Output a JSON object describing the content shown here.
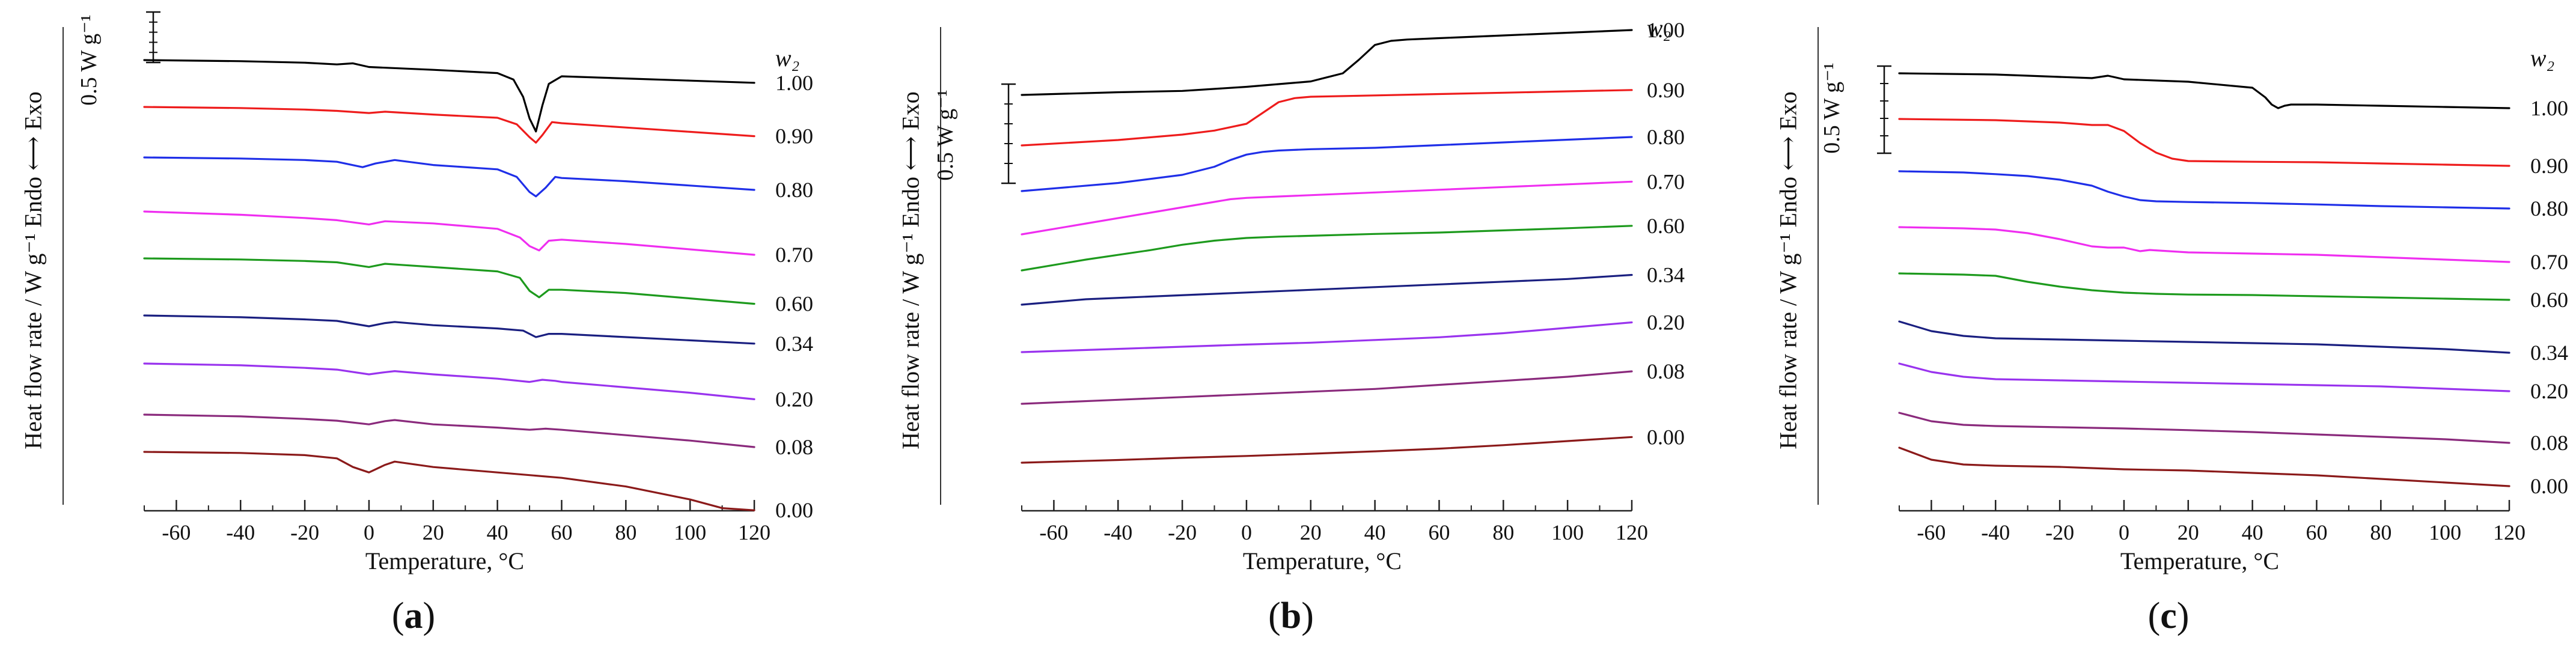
{
  "chart_data": [
    {
      "type": "line",
      "panel_label": "a",
      "xlabel": "Temperature, °C",
      "ylabel": "Heat flow rate / W g⁻¹   Endo ⟷ Exo",
      "scale_bar": "0.5 W g⁻¹",
      "legend_title": "w₂",
      "xlim": [
        -70,
        120
      ],
      "xticks": [
        -60,
        -40,
        -20,
        0,
        20,
        40,
        60,
        80,
        100,
        120
      ],
      "series": [
        {
          "name": "1.00",
          "color": "#000000",
          "x": [
            -70,
            -40,
            -20,
            -10,
            -5,
            0,
            20,
            40,
            45,
            48,
            50,
            52,
            54,
            56,
            60,
            80,
            100,
            120
          ],
          "y": [
            0.5,
            0.45,
            0.38,
            0.3,
            0.35,
            0.18,
            0.05,
            -0.1,
            -0.4,
            -1.2,
            -2.2,
            -2.8,
            -1.6,
            -0.6,
            -0.25,
            -0.35,
            -0.45,
            -0.55
          ]
        },
        {
          "name": "0.90",
          "color": "#ee1c1c",
          "x": [
            -70,
            -40,
            -20,
            -10,
            0,
            5,
            20,
            40,
            46,
            50,
            52,
            54,
            57,
            60,
            80,
            100,
            120
          ],
          "y": [
            0.0,
            -0.05,
            -0.12,
            -0.18,
            -0.28,
            -0.22,
            -0.35,
            -0.5,
            -0.8,
            -1.4,
            -1.65,
            -1.3,
            -0.7,
            -0.75,
            -0.95,
            -1.15,
            -1.35
          ]
        },
        {
          "name": "0.80",
          "color": "#1f2fe8",
          "x": [
            -70,
            -40,
            -20,
            -10,
            -2,
            2,
            8,
            20,
            40,
            46,
            50,
            52,
            55,
            58,
            60,
            80,
            100,
            120
          ],
          "y": [
            0.0,
            -0.05,
            -0.12,
            -0.2,
            -0.45,
            -0.28,
            -0.12,
            -0.35,
            -0.55,
            -0.9,
            -1.6,
            -1.8,
            -1.4,
            -0.9,
            -0.95,
            -1.1,
            -1.3,
            -1.5
          ]
        },
        {
          "name": "0.70",
          "color": "#ef2ef0",
          "x": [
            -70,
            -40,
            -20,
            -10,
            0,
            5,
            20,
            40,
            47,
            50,
            53,
            56,
            60,
            80,
            100,
            120
          ],
          "y": [
            0.0,
            -0.15,
            -0.3,
            -0.4,
            -0.6,
            -0.45,
            -0.55,
            -0.8,
            -1.2,
            -1.6,
            -1.8,
            -1.35,
            -1.3,
            -1.5,
            -1.75,
            -2.0
          ]
        },
        {
          "name": "0.60",
          "color": "#1d9a1d",
          "x": [
            -70,
            -40,
            -20,
            -10,
            0,
            5,
            10,
            20,
            40,
            47,
            50,
            53,
            56,
            60,
            80,
            100,
            120
          ],
          "y": [
            0.0,
            -0.05,
            -0.12,
            -0.18,
            -0.4,
            -0.25,
            -0.3,
            -0.4,
            -0.6,
            -0.9,
            -1.5,
            -1.8,
            -1.45,
            -1.45,
            -1.6,
            -1.85,
            -2.1
          ]
        },
        {
          "name": "0.34",
          "color": "#1a1f80",
          "x": [
            -70,
            -40,
            -20,
            -10,
            0,
            5,
            8,
            20,
            40,
            48,
            52,
            56,
            60,
            80,
            100,
            120
          ],
          "y": [
            0.0,
            -0.08,
            -0.18,
            -0.25,
            -0.5,
            -0.35,
            -0.3,
            -0.45,
            -0.6,
            -0.7,
            -1.0,
            -0.85,
            -0.85,
            -1.0,
            -1.15,
            -1.3
          ]
        },
        {
          "name": "0.20",
          "color": "#9933ee",
          "x": [
            -70,
            -40,
            -20,
            -10,
            0,
            5,
            8,
            20,
            40,
            50,
            54,
            58,
            60,
            80,
            100,
            120
          ],
          "y": [
            0.0,
            -0.08,
            -0.2,
            -0.28,
            -0.5,
            -0.4,
            -0.35,
            -0.5,
            -0.7,
            -0.85,
            -0.75,
            -0.8,
            -0.85,
            -1.1,
            -1.35,
            -1.65
          ]
        },
        {
          "name": "0.08",
          "color": "#8a2a7c",
          "x": [
            -70,
            -40,
            -20,
            -10,
            0,
            5,
            8,
            20,
            40,
            50,
            55,
            60,
            80,
            100,
            120
          ],
          "y": [
            0.0,
            -0.08,
            -0.2,
            -0.28,
            -0.45,
            -0.3,
            -0.25,
            -0.45,
            -0.6,
            -0.7,
            -0.65,
            -0.7,
            -0.95,
            -1.2,
            -1.5
          ]
        },
        {
          "name": "0.00",
          "color": "#8b1a1a",
          "x": [
            -70,
            -40,
            -20,
            -10,
            -5,
            0,
            5,
            8,
            20,
            40,
            60,
            80,
            100,
            110,
            120
          ],
          "y": [
            0.0,
            -0.05,
            -0.15,
            -0.3,
            -0.7,
            -0.95,
            -0.6,
            -0.45,
            -0.7,
            -0.95,
            -1.2,
            -1.6,
            -2.2,
            -2.6,
            -2.7
          ]
        }
      ]
    },
    {
      "type": "line",
      "panel_label": "b",
      "xlabel": "Temperature, °C",
      "ylabel": "Heat flow rate / W g⁻¹   Endo ⟷ Exo",
      "scale_bar": "0.5 W g⁻¹",
      "legend_title": "w₂",
      "xlim": [
        -70,
        120
      ],
      "xticks": [
        -60,
        -40,
        -20,
        0,
        20,
        40,
        60,
        80,
        100,
        120
      ],
      "series": [
        {
          "name": "1.00",
          "color": "#000000",
          "x": [
            -70,
            -40,
            -20,
            0,
            20,
            30,
            35,
            40,
            45,
            50,
            60,
            80,
            100,
            120
          ],
          "y": [
            0.0,
            0.1,
            0.15,
            0.3,
            0.5,
            0.8,
            1.3,
            1.85,
            2.0,
            2.05,
            2.1,
            2.2,
            2.3,
            2.4
          ]
        },
        {
          "name": "0.90",
          "color": "#ee1c1c",
          "x": [
            -70,
            -40,
            -20,
            -10,
            0,
            5,
            10,
            15,
            20,
            40,
            60,
            80,
            100,
            120
          ],
          "y": [
            0.0,
            0.2,
            0.4,
            0.55,
            0.8,
            1.2,
            1.6,
            1.75,
            1.8,
            1.85,
            1.9,
            1.95,
            2.0,
            2.05
          ]
        },
        {
          "name": "0.80",
          "color": "#1f2fe8",
          "x": [
            -70,
            -40,
            -20,
            -10,
            -5,
            0,
            5,
            10,
            20,
            40,
            60,
            80,
            100,
            120
          ],
          "y": [
            0.0,
            0.3,
            0.6,
            0.9,
            1.15,
            1.35,
            1.45,
            1.5,
            1.55,
            1.6,
            1.7,
            1.8,
            1.9,
            2.0
          ]
        },
        {
          "name": "0.70",
          "color": "#ef2ef0",
          "x": [
            -70,
            -50,
            -30,
            -20,
            -10,
            -5,
            0,
            10,
            40,
            60,
            80,
            100,
            120
          ],
          "y": [
            0.0,
            0.4,
            0.8,
            1.0,
            1.2,
            1.3,
            1.35,
            1.4,
            1.55,
            1.65,
            1.75,
            1.85,
            1.95
          ]
        },
        {
          "name": "0.60",
          "color": "#1d9a1d",
          "x": [
            -70,
            -50,
            -30,
            -20,
            -10,
            0,
            10,
            20,
            40,
            60,
            80,
            100,
            120
          ],
          "y": [
            0.0,
            0.4,
            0.75,
            0.95,
            1.1,
            1.2,
            1.25,
            1.28,
            1.35,
            1.4,
            1.48,
            1.56,
            1.65
          ]
        },
        {
          "name": "0.34",
          "color": "#1a1f80",
          "x": [
            -70,
            -50,
            -30,
            -10,
            0,
            20,
            40,
            60,
            80,
            100,
            120
          ],
          "y": [
            0.0,
            0.2,
            0.3,
            0.4,
            0.45,
            0.55,
            0.65,
            0.75,
            0.85,
            0.95,
            1.1
          ]
        },
        {
          "name": "0.20",
          "color": "#9933ee",
          "x": [
            -70,
            -40,
            -20,
            0,
            20,
            40,
            60,
            80,
            100,
            120
          ],
          "y": [
            0.0,
            0.12,
            0.2,
            0.28,
            0.35,
            0.45,
            0.55,
            0.7,
            0.9,
            1.1
          ]
        },
        {
          "name": "0.08",
          "color": "#8a2a7c",
          "x": [
            -70,
            -40,
            -20,
            0,
            20,
            40,
            60,
            80,
            100,
            120
          ],
          "y": [
            0.0,
            0.15,
            0.25,
            0.35,
            0.45,
            0.55,
            0.7,
            0.85,
            1.0,
            1.2
          ]
        },
        {
          "name": "0.00",
          "color": "#8b1a1a",
          "x": [
            -70,
            -40,
            -20,
            0,
            20,
            40,
            60,
            80,
            100,
            120
          ],
          "y": [
            0.0,
            0.1,
            0.18,
            0.25,
            0.33,
            0.42,
            0.52,
            0.65,
            0.8,
            0.95
          ]
        }
      ]
    },
    {
      "type": "line",
      "panel_label": "c",
      "xlabel": "Temperature, °C",
      "ylabel": "Heat flow rate / W g⁻¹   Endo ⟷ Exo",
      "scale_bar": "0.5 W g⁻¹",
      "legend_title": "w₂",
      "xlim": [
        -70,
        120
      ],
      "xticks": [
        -60,
        -40,
        -20,
        0,
        20,
        40,
        60,
        80,
        100,
        120
      ],
      "series": [
        {
          "name": "1.00",
          "color": "#000000",
          "x": [
            -70,
            -40,
            -20,
            -10,
            -5,
            0,
            20,
            40,
            44,
            46,
            48,
            50,
            52,
            60,
            80,
            100,
            120
          ],
          "y": [
            0.0,
            -0.05,
            -0.15,
            -0.2,
            -0.1,
            -0.25,
            -0.35,
            -0.6,
            -1.0,
            -1.3,
            -1.45,
            -1.35,
            -1.3,
            -1.3,
            -1.35,
            -1.4,
            -1.45
          ]
        },
        {
          "name": "0.90",
          "color": "#ee1c1c",
          "x": [
            -70,
            -40,
            -20,
            -10,
            -5,
            0,
            5,
            10,
            15,
            20,
            40,
            60,
            80,
            100,
            120
          ],
          "y": [
            0.0,
            -0.05,
            -0.15,
            -0.25,
            -0.25,
            -0.5,
            -1.0,
            -1.4,
            -1.65,
            -1.75,
            -1.78,
            -1.8,
            -1.85,
            -1.9,
            -1.95
          ]
        },
        {
          "name": "0.80",
          "color": "#1f2fe8",
          "x": [
            -70,
            -50,
            -40,
            -30,
            -20,
            -10,
            -5,
            0,
            5,
            10,
            20,
            40,
            60,
            80,
            100,
            120
          ],
          "y": [
            0.0,
            -0.05,
            -0.12,
            -0.2,
            -0.35,
            -0.6,
            -0.85,
            -1.05,
            -1.2,
            -1.25,
            -1.28,
            -1.32,
            -1.38,
            -1.45,
            -1.5,
            -1.55
          ]
        },
        {
          "name": "0.70",
          "color": "#ef2ef0",
          "x": [
            -70,
            -50,
            -40,
            -30,
            -20,
            -10,
            -5,
            0,
            5,
            8,
            20,
            40,
            60,
            80,
            100,
            120
          ],
          "y": [
            0.0,
            -0.05,
            -0.1,
            -0.25,
            -0.5,
            -0.8,
            -0.85,
            -0.85,
            -1.0,
            -0.95,
            -1.05,
            -1.1,
            -1.15,
            -1.25,
            -1.35,
            -1.45
          ]
        },
        {
          "name": "0.60",
          "color": "#1d9a1d",
          "x": [
            -70,
            -50,
            -40,
            -30,
            -20,
            -10,
            0,
            10,
            20,
            40,
            60,
            80,
            100,
            120
          ],
          "y": [
            0.0,
            -0.05,
            -0.1,
            -0.35,
            -0.55,
            -0.7,
            -0.8,
            -0.85,
            -0.88,
            -0.9,
            -0.95,
            -1.0,
            -1.05,
            -1.1
          ]
        },
        {
          "name": "0.34",
          "color": "#1a1f80",
          "x": [
            -70,
            -60,
            -50,
            -40,
            -20,
            0,
            20,
            40,
            60,
            80,
            100,
            120
          ],
          "y": [
            0.0,
            -0.4,
            -0.6,
            -0.7,
            -0.75,
            -0.8,
            -0.85,
            -0.9,
            -0.95,
            -1.05,
            -1.15,
            -1.3
          ]
        },
        {
          "name": "0.20",
          "color": "#9933ee",
          "x": [
            -70,
            -60,
            -50,
            -40,
            -20,
            0,
            20,
            40,
            60,
            80,
            100,
            120
          ],
          "y": [
            0.0,
            -0.35,
            -0.55,
            -0.65,
            -0.7,
            -0.75,
            -0.8,
            -0.85,
            -0.9,
            -0.95,
            -1.05,
            -1.15
          ]
        },
        {
          "name": "0.08",
          "color": "#8a2a7c",
          "x": [
            -70,
            -60,
            -50,
            -40,
            -20,
            0,
            20,
            40,
            60,
            80,
            100,
            120
          ],
          "y": [
            0.0,
            -0.35,
            -0.5,
            -0.55,
            -0.6,
            -0.65,
            -0.72,
            -0.8,
            -0.9,
            -1.0,
            -1.1,
            -1.25
          ]
        },
        {
          "name": "0.00",
          "color": "#8b1a1a",
          "x": [
            -70,
            -60,
            -50,
            -40,
            -20,
            -10,
            0,
            20,
            40,
            60,
            80,
            100,
            120
          ],
          "y": [
            0.0,
            -0.5,
            -0.7,
            -0.75,
            -0.8,
            -0.85,
            -0.9,
            -0.95,
            -1.05,
            -1.15,
            -1.3,
            -1.45,
            -1.6
          ]
        }
      ]
    }
  ]
}
